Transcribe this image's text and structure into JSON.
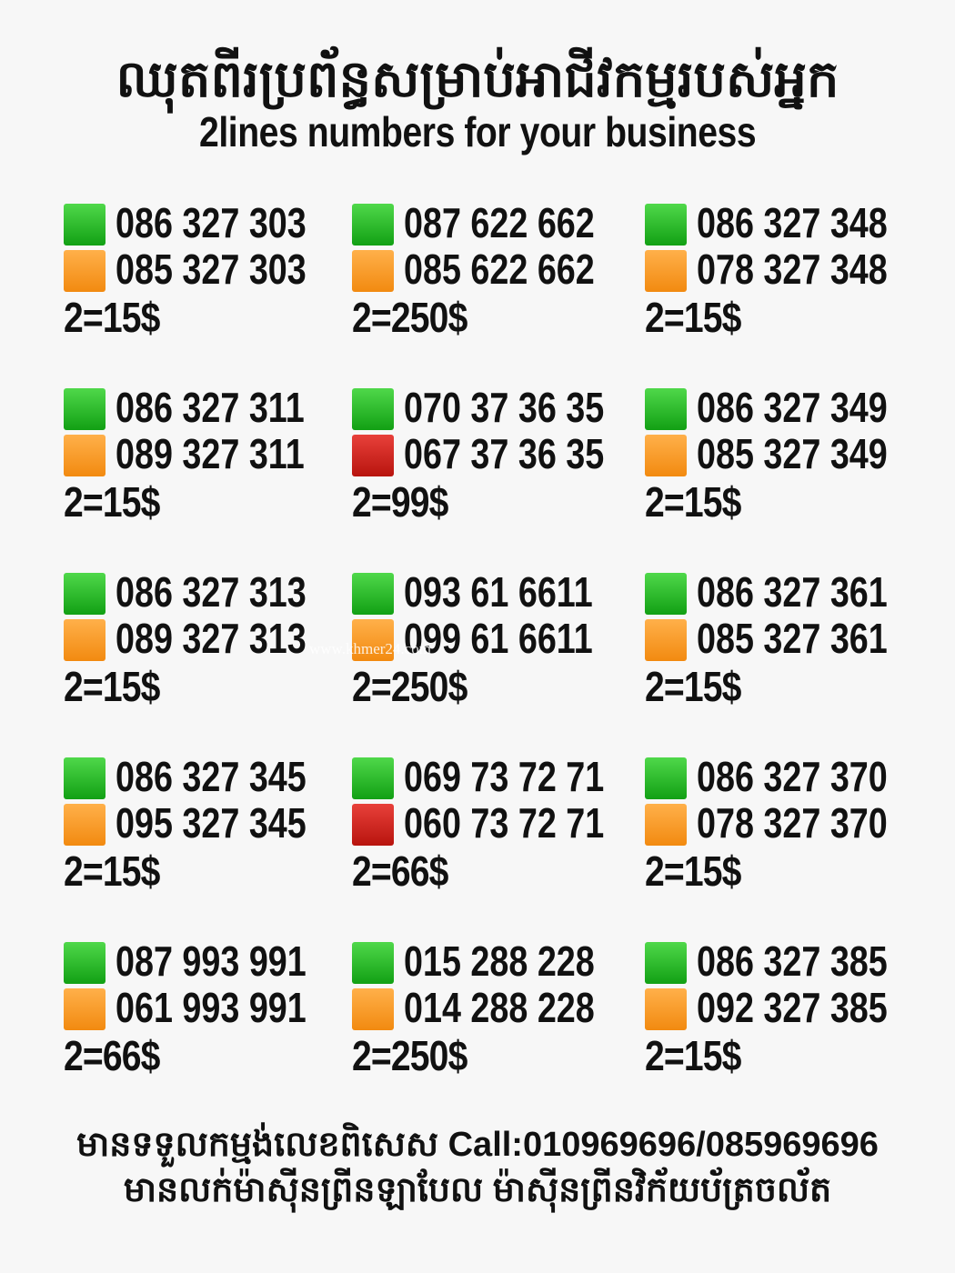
{
  "header": {
    "title_khmer": "ឈុតពីរប្រព័ន្ធសម្រាប់អាជីវកម្មរបស់អ្នក",
    "title_english": "2lines numbers for your business"
  },
  "colors": {
    "green": "#2db82d",
    "orange": "#f7941d",
    "red": "#d0201a"
  },
  "cards": [
    {
      "lines": [
        {
          "color": "green",
          "number": "086 327 303"
        },
        {
          "color": "orange",
          "number": "085 327 303"
        }
      ],
      "price": "2=15$"
    },
    {
      "lines": [
        {
          "color": "green",
          "number": "087 622 662"
        },
        {
          "color": "orange",
          "number": "085 622 662"
        }
      ],
      "price": "2=250$"
    },
    {
      "lines": [
        {
          "color": "green",
          "number": "086 327 348"
        },
        {
          "color": "orange",
          "number": "078 327 348"
        }
      ],
      "price": "2=15$"
    },
    {
      "lines": [
        {
          "color": "green",
          "number": "086 327 311"
        },
        {
          "color": "orange",
          "number": "089 327 311"
        }
      ],
      "price": "2=15$"
    },
    {
      "lines": [
        {
          "color": "green",
          "number": "070 37 36 35"
        },
        {
          "color": "red",
          "number": "067 37 36 35"
        }
      ],
      "price": "2=99$"
    },
    {
      "lines": [
        {
          "color": "green",
          "number": "086 327 349"
        },
        {
          "color": "orange",
          "number": "085 327 349"
        }
      ],
      "price": "2=15$"
    },
    {
      "lines": [
        {
          "color": "green",
          "number": "086 327 313"
        },
        {
          "color": "orange",
          "number": "089 327 313"
        }
      ],
      "price": "2=15$"
    },
    {
      "lines": [
        {
          "color": "green",
          "number": "093 61 6611"
        },
        {
          "color": "orange",
          "number": "099 61 6611"
        }
      ],
      "price": "2=250$"
    },
    {
      "lines": [
        {
          "color": "green",
          "number": "086 327 361"
        },
        {
          "color": "orange",
          "number": "085 327 361"
        }
      ],
      "price": "2=15$"
    },
    {
      "lines": [
        {
          "color": "green",
          "number": "086 327 345"
        },
        {
          "color": "orange",
          "number": "095 327 345"
        }
      ],
      "price": "2=15$"
    },
    {
      "lines": [
        {
          "color": "green",
          "number": "069 73 72 71"
        },
        {
          "color": "red",
          "number": "060 73 72 71"
        }
      ],
      "price": "2=66$"
    },
    {
      "lines": [
        {
          "color": "green",
          "number": "086 327 370"
        },
        {
          "color": "orange",
          "number": "078 327 370"
        }
      ],
      "price": "2=15$"
    },
    {
      "lines": [
        {
          "color": "green",
          "number": "087 993 991"
        },
        {
          "color": "orange",
          "number": "061 993 991"
        }
      ],
      "price": "2=66$"
    },
    {
      "lines": [
        {
          "color": "green",
          "number": "015 288 228"
        },
        {
          "color": "orange",
          "number": "014 288 228"
        }
      ],
      "price": "2=250$"
    },
    {
      "lines": [
        {
          "color": "green",
          "number": "086 327 385"
        },
        {
          "color": "orange",
          "number": "092 327 385"
        }
      ],
      "price": "2=15$"
    }
  ],
  "footer": {
    "line1": "មានទទួលកម្មង់លេខពិសេស Call:010969696/085969696",
    "line2": "មានលក់ម៉ាស៊ីនព្រីនឡាបែល ម៉ាស៊ីនព្រីនវិក័យប័ត្រចល័ត"
  },
  "watermark": "www.khmer24.com"
}
